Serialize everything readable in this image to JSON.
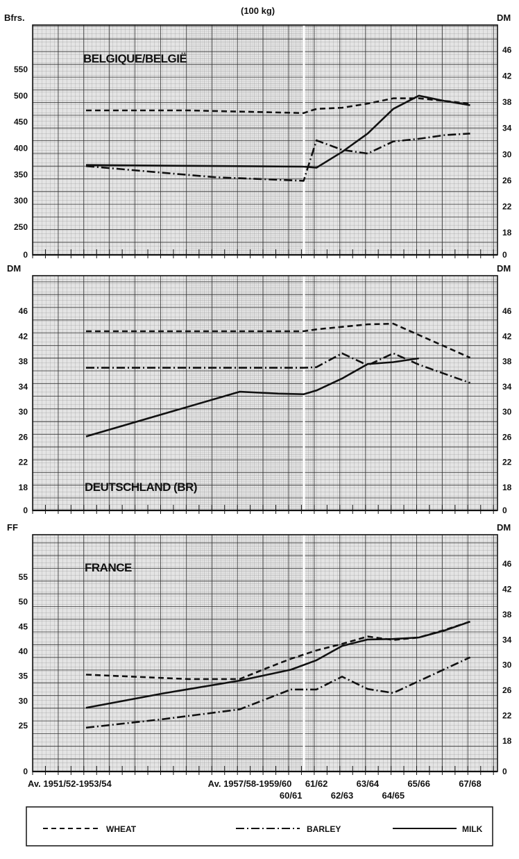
{
  "figure": {
    "top_unit": "(100 kg)",
    "x_labels": [
      {
        "text": "Av. 1951/52-1953/54",
        "x": 0
      },
      {
        "text": "Av. 1957/58-1959/60",
        "x": 6
      },
      {
        "text": "60/61",
        "x": 8
      },
      {
        "text": "61/62",
        "x": 9
      },
      {
        "text": "62/63",
        "x": 10
      },
      {
        "text": "63/64",
        "x": 11
      },
      {
        "text": "64/65",
        "x": 12
      },
      {
        "text": "65/66",
        "x": 13
      },
      {
        "text": "67/68",
        "x": 15
      }
    ],
    "legend": [
      {
        "name": "WHEAT",
        "style": "dashed"
      },
      {
        "name": "BARLEY",
        "style": "dashdot"
      },
      {
        "name": "MILK",
        "style": "solid"
      }
    ]
  },
  "chart_data": [
    {
      "type": "line",
      "title": "BELGIQUE/BELGIË",
      "left_unit": "Bfrs.",
      "right_unit": "DM",
      "left_ticks": [
        "0",
        "250",
        "300",
        "350",
        "400",
        "450",
        "500",
        "550"
      ],
      "right_ticks": [
        "0",
        "18",
        "22",
        "26",
        "30",
        "34",
        "38",
        "42",
        "46"
      ],
      "x_range": [
        0,
        15
      ],
      "series": [
        {
          "name": "WHEAT",
          "style": "dashed",
          "points": [
            [
              0,
              472
            ],
            [
              4,
              472
            ],
            [
              8.5,
              467
            ],
            [
              9,
              475
            ],
            [
              10,
              477
            ],
            [
              11,
              485
            ],
            [
              12,
              495
            ],
            [
              13,
              495
            ],
            [
              14,
              490
            ],
            [
              15,
              485
            ]
          ]
        },
        {
          "name": "BARLEY",
          "style": "dashdot",
          "points": [
            [
              0,
              366
            ],
            [
              5,
              345
            ],
            [
              8.5,
              338
            ],
            [
              9,
              415
            ],
            [
              10,
              397
            ],
            [
              11,
              390
            ],
            [
              12,
              413
            ],
            [
              13,
              418
            ],
            [
              14,
              425
            ],
            [
              15,
              428
            ]
          ]
        },
        {
          "name": "MILK",
          "style": "solid",
          "points": [
            [
              0,
              368
            ],
            [
              8.5,
              365
            ],
            [
              9,
              363
            ],
            [
              10,
              393
            ],
            [
              11,
              428
            ],
            [
              12,
              475
            ],
            [
              13,
              500
            ],
            [
              14,
              490
            ],
            [
              15,
              482
            ]
          ]
        }
      ]
    },
    {
      "type": "line",
      "title": "DEUTSCHLAND (BR)",
      "left_unit": "DM",
      "right_unit": "DM",
      "left_ticks": [
        "0",
        "18",
        "22",
        "26",
        "30",
        "34",
        "38",
        "42",
        "46"
      ],
      "right_ticks": [
        "0",
        "18",
        "22",
        "26",
        "30",
        "34",
        "38",
        "42",
        "46"
      ],
      "x_range": [
        0,
        15
      ],
      "series": [
        {
          "name": "WHEAT",
          "style": "dashed",
          "points": [
            [
              0,
              42.8
            ],
            [
              8.5,
              42.8
            ],
            [
              9,
              43.1
            ],
            [
              10,
              43.5
            ],
            [
              11,
              43.9
            ],
            [
              12,
              44
            ],
            [
              15,
              38.6
            ]
          ]
        },
        {
          "name": "BARLEY",
          "style": "dashdot",
          "points": [
            [
              0,
              37
            ],
            [
              8.5,
              37
            ],
            [
              9,
              37.1
            ],
            [
              10,
              39.3
            ],
            [
              11,
              37.4
            ],
            [
              12,
              39.3
            ],
            [
              13,
              37.5
            ],
            [
              15,
              34.6
            ]
          ]
        },
        {
          "name": "MILK",
          "style": "solid",
          "points": [
            [
              0,
              26.1
            ],
            [
              6,
              33.2
            ],
            [
              7.5,
              32.9
            ],
            [
              8.5,
              32.8
            ],
            [
              9,
              33.4
            ],
            [
              10,
              35.3
            ],
            [
              11,
              37.6
            ],
            [
              12,
              37.9
            ],
            [
              13,
              38.5
            ]
          ]
        }
      ]
    },
    {
      "type": "line",
      "title": "FRANCE",
      "left_unit": "FF",
      "right_unit": "DM",
      "left_ticks": [
        "0",
        "25",
        "30",
        "35",
        "40",
        "45",
        "50",
        "55"
      ],
      "right_ticks": [
        "0",
        "18",
        "22",
        "26",
        "30",
        "34",
        "38",
        "42",
        "46"
      ],
      "x_range": [
        0,
        15
      ],
      "series": [
        {
          "name": "WHEAT",
          "style": "dashed",
          "points": [
            [
              0,
              35.3
            ],
            [
              4,
              34.4
            ],
            [
              6,
              34.4
            ],
            [
              7,
              36.5
            ],
            [
              8,
              38.5
            ],
            [
              9,
              40.2
            ],
            [
              10,
              41.5
            ],
            [
              11,
              43
            ],
            [
              12,
              42.3
            ],
            [
              13,
              42.8
            ],
            [
              14,
              44.3
            ],
            [
              15,
              46
            ]
          ]
        },
        {
          "name": "BARLEY",
          "style": "dashdot",
          "points": [
            [
              0,
              23.9
            ],
            [
              3,
              26.3
            ],
            [
              6,
              28.3
            ],
            [
              8,
              32.3
            ],
            [
              9,
              32.3
            ],
            [
              10,
              34.9
            ],
            [
              11,
              32.4
            ],
            [
              12,
              31.6
            ],
            [
              15,
              38.8
            ]
          ]
        },
        {
          "name": "MILK",
          "style": "solid",
          "points": [
            [
              0,
              28.6
            ],
            [
              3,
              31.5
            ],
            [
              6,
              34.1
            ],
            [
              8,
              36.3
            ],
            [
              9,
              38.2
            ],
            [
              10,
              41.1
            ],
            [
              11,
              42.4
            ],
            [
              12,
              42.5
            ],
            [
              13,
              42.8
            ],
            [
              14,
              44.2
            ],
            [
              15,
              46
            ]
          ]
        }
      ]
    }
  ]
}
